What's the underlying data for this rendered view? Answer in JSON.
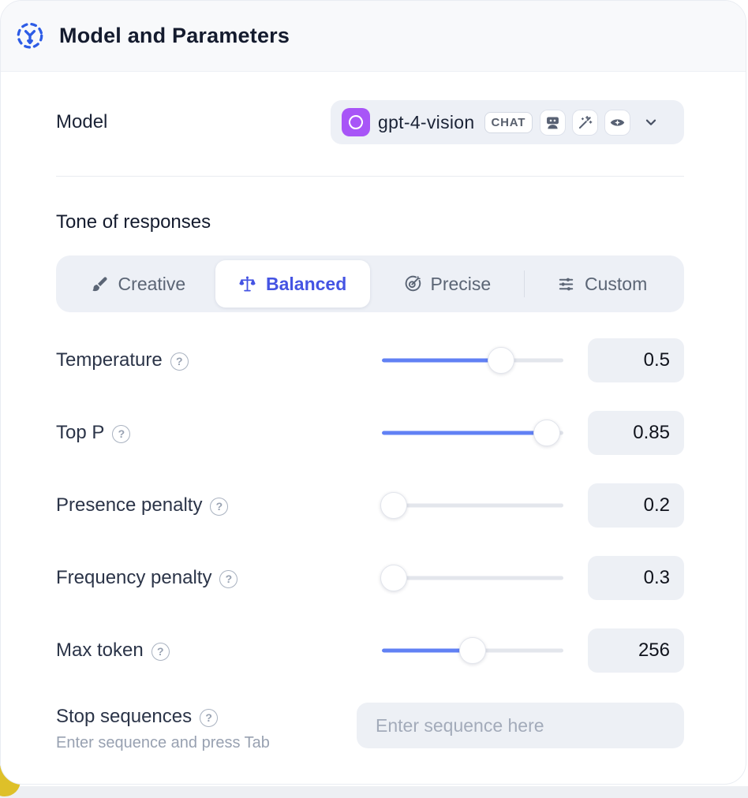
{
  "header": {
    "title": "Model and Parameters"
  },
  "model": {
    "label": "Model",
    "name": "gpt-4-vision",
    "type_badge": "CHAT",
    "capability_icons": [
      "robot-icon",
      "wand-icon",
      "eye-icon"
    ]
  },
  "tone": {
    "heading": "Tone of responses",
    "options": [
      {
        "label": "Creative",
        "icon": "brush-icon",
        "selected": false
      },
      {
        "label": "Balanced",
        "icon": "balance-scale-icon",
        "selected": true
      },
      {
        "label": "Precise",
        "icon": "target-arrow-icon",
        "selected": false
      },
      {
        "label": "Custom",
        "icon": "adjustments-icon",
        "selected": false
      }
    ]
  },
  "parameters": [
    {
      "label": "Temperature",
      "value": "0.5",
      "slider_pct": 68
    },
    {
      "label": "Top P",
      "value": "0.85",
      "slider_pct": 97
    },
    {
      "label": "Presence penalty",
      "value": "0.2",
      "slider_pct": 0
    },
    {
      "label": "Frequency penalty",
      "value": "0.3",
      "slider_pct": 0
    },
    {
      "label": "Max token",
      "value": "256",
      "slider_pct": 50
    }
  ],
  "stop_sequences": {
    "label": "Stop sequences",
    "helper": "Enter sequence and press Tab",
    "placeholder": "Enter sequence here"
  },
  "colors": {
    "accent_blue": "#4554e3",
    "slider_blue": "#6181f4",
    "header_icon_blue": "#2d5ce6",
    "model_logo_purple": "#a855f7",
    "highlight_yellow": "#dec029"
  }
}
